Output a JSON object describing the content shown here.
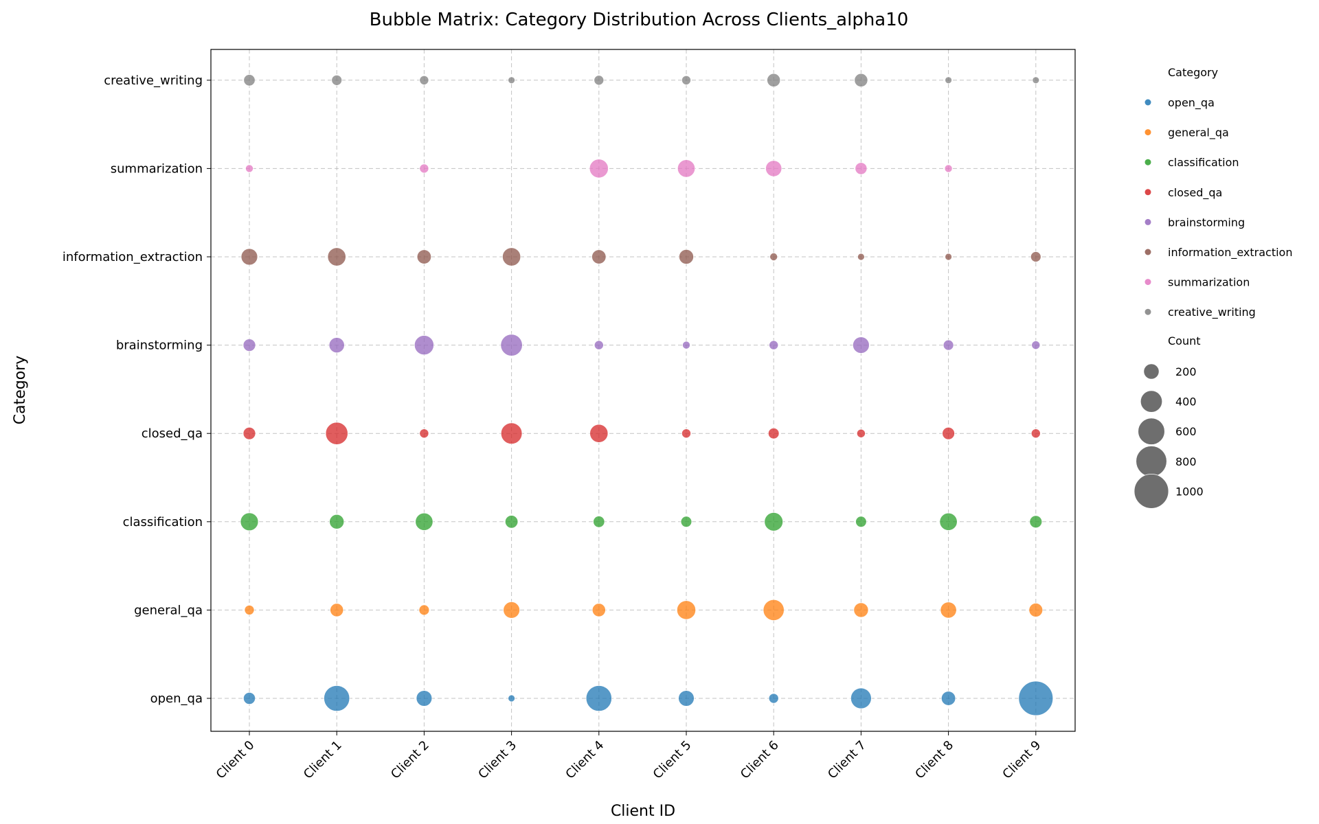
{
  "chart_data": {
    "type": "scatter",
    "title": "Bubble Matrix: Category Distribution Across Clients_alpha10",
    "xlabel": "Client ID",
    "ylabel": "Category",
    "grid": true,
    "legend_position": "right",
    "categories_x": [
      "Client 0",
      "Client 1",
      "Client 2",
      "Client 3",
      "Client 4",
      "Client 5",
      "Client 6",
      "Client 7",
      "Client 8",
      "Client 9"
    ],
    "categories_y": [
      "open_qa",
      "general_qa",
      "classification",
      "closed_qa",
      "brainstorming",
      "information_extraction",
      "summarization",
      "creative_writing"
    ],
    "series": [
      {
        "name": "open_qa",
        "color": "#1f77b4",
        "values": [
          120,
          560,
          210,
          40,
          560,
          210,
          80,
          360,
          170,
          1000
        ]
      },
      {
        "name": "general_qa",
        "color": "#ff7f0e",
        "values": [
          80,
          150,
          90,
          230,
          150,
          300,
          370,
          180,
          220,
          160
        ]
      },
      {
        "name": "classification",
        "color": "#2ca02c",
        "values": [
          270,
          180,
          260,
          140,
          110,
          100,
          290,
          100,
          260,
          130
        ]
      },
      {
        "name": "closed_qa",
        "color": "#d62728",
        "values": [
          130,
          420,
          70,
          380,
          280,
          70,
          100,
          60,
          130,
          70
        ]
      },
      {
        "name": "brainstorming",
        "color": "#9467bd",
        "values": [
          130,
          200,
          320,
          400,
          70,
          50,
          70,
          230,
          90,
          60
        ]
      },
      {
        "name": "information_extraction",
        "color": "#8c564b",
        "values": [
          230,
          280,
          170,
          280,
          170,
          180,
          50,
          40,
          40,
          90
        ]
      },
      {
        "name": "summarization",
        "color": "#e377c2",
        "values": [
          50,
          0,
          70,
          0,
          300,
          260,
          220,
          120,
          50,
          0
        ]
      },
      {
        "name": "creative_writing",
        "color": "#7f7f7f",
        "values": [
          110,
          90,
          70,
          40,
          80,
          70,
          150,
          150,
          40,
          40
        ]
      }
    ],
    "legend": {
      "category_title": "Category",
      "size_title": "Count",
      "size_values": [
        200,
        400,
        600,
        800,
        1000
      ],
      "size_labels": [
        "200",
        "400",
        "600",
        "800",
        "1000"
      ],
      "size_color": "#6e6e6e"
    }
  }
}
